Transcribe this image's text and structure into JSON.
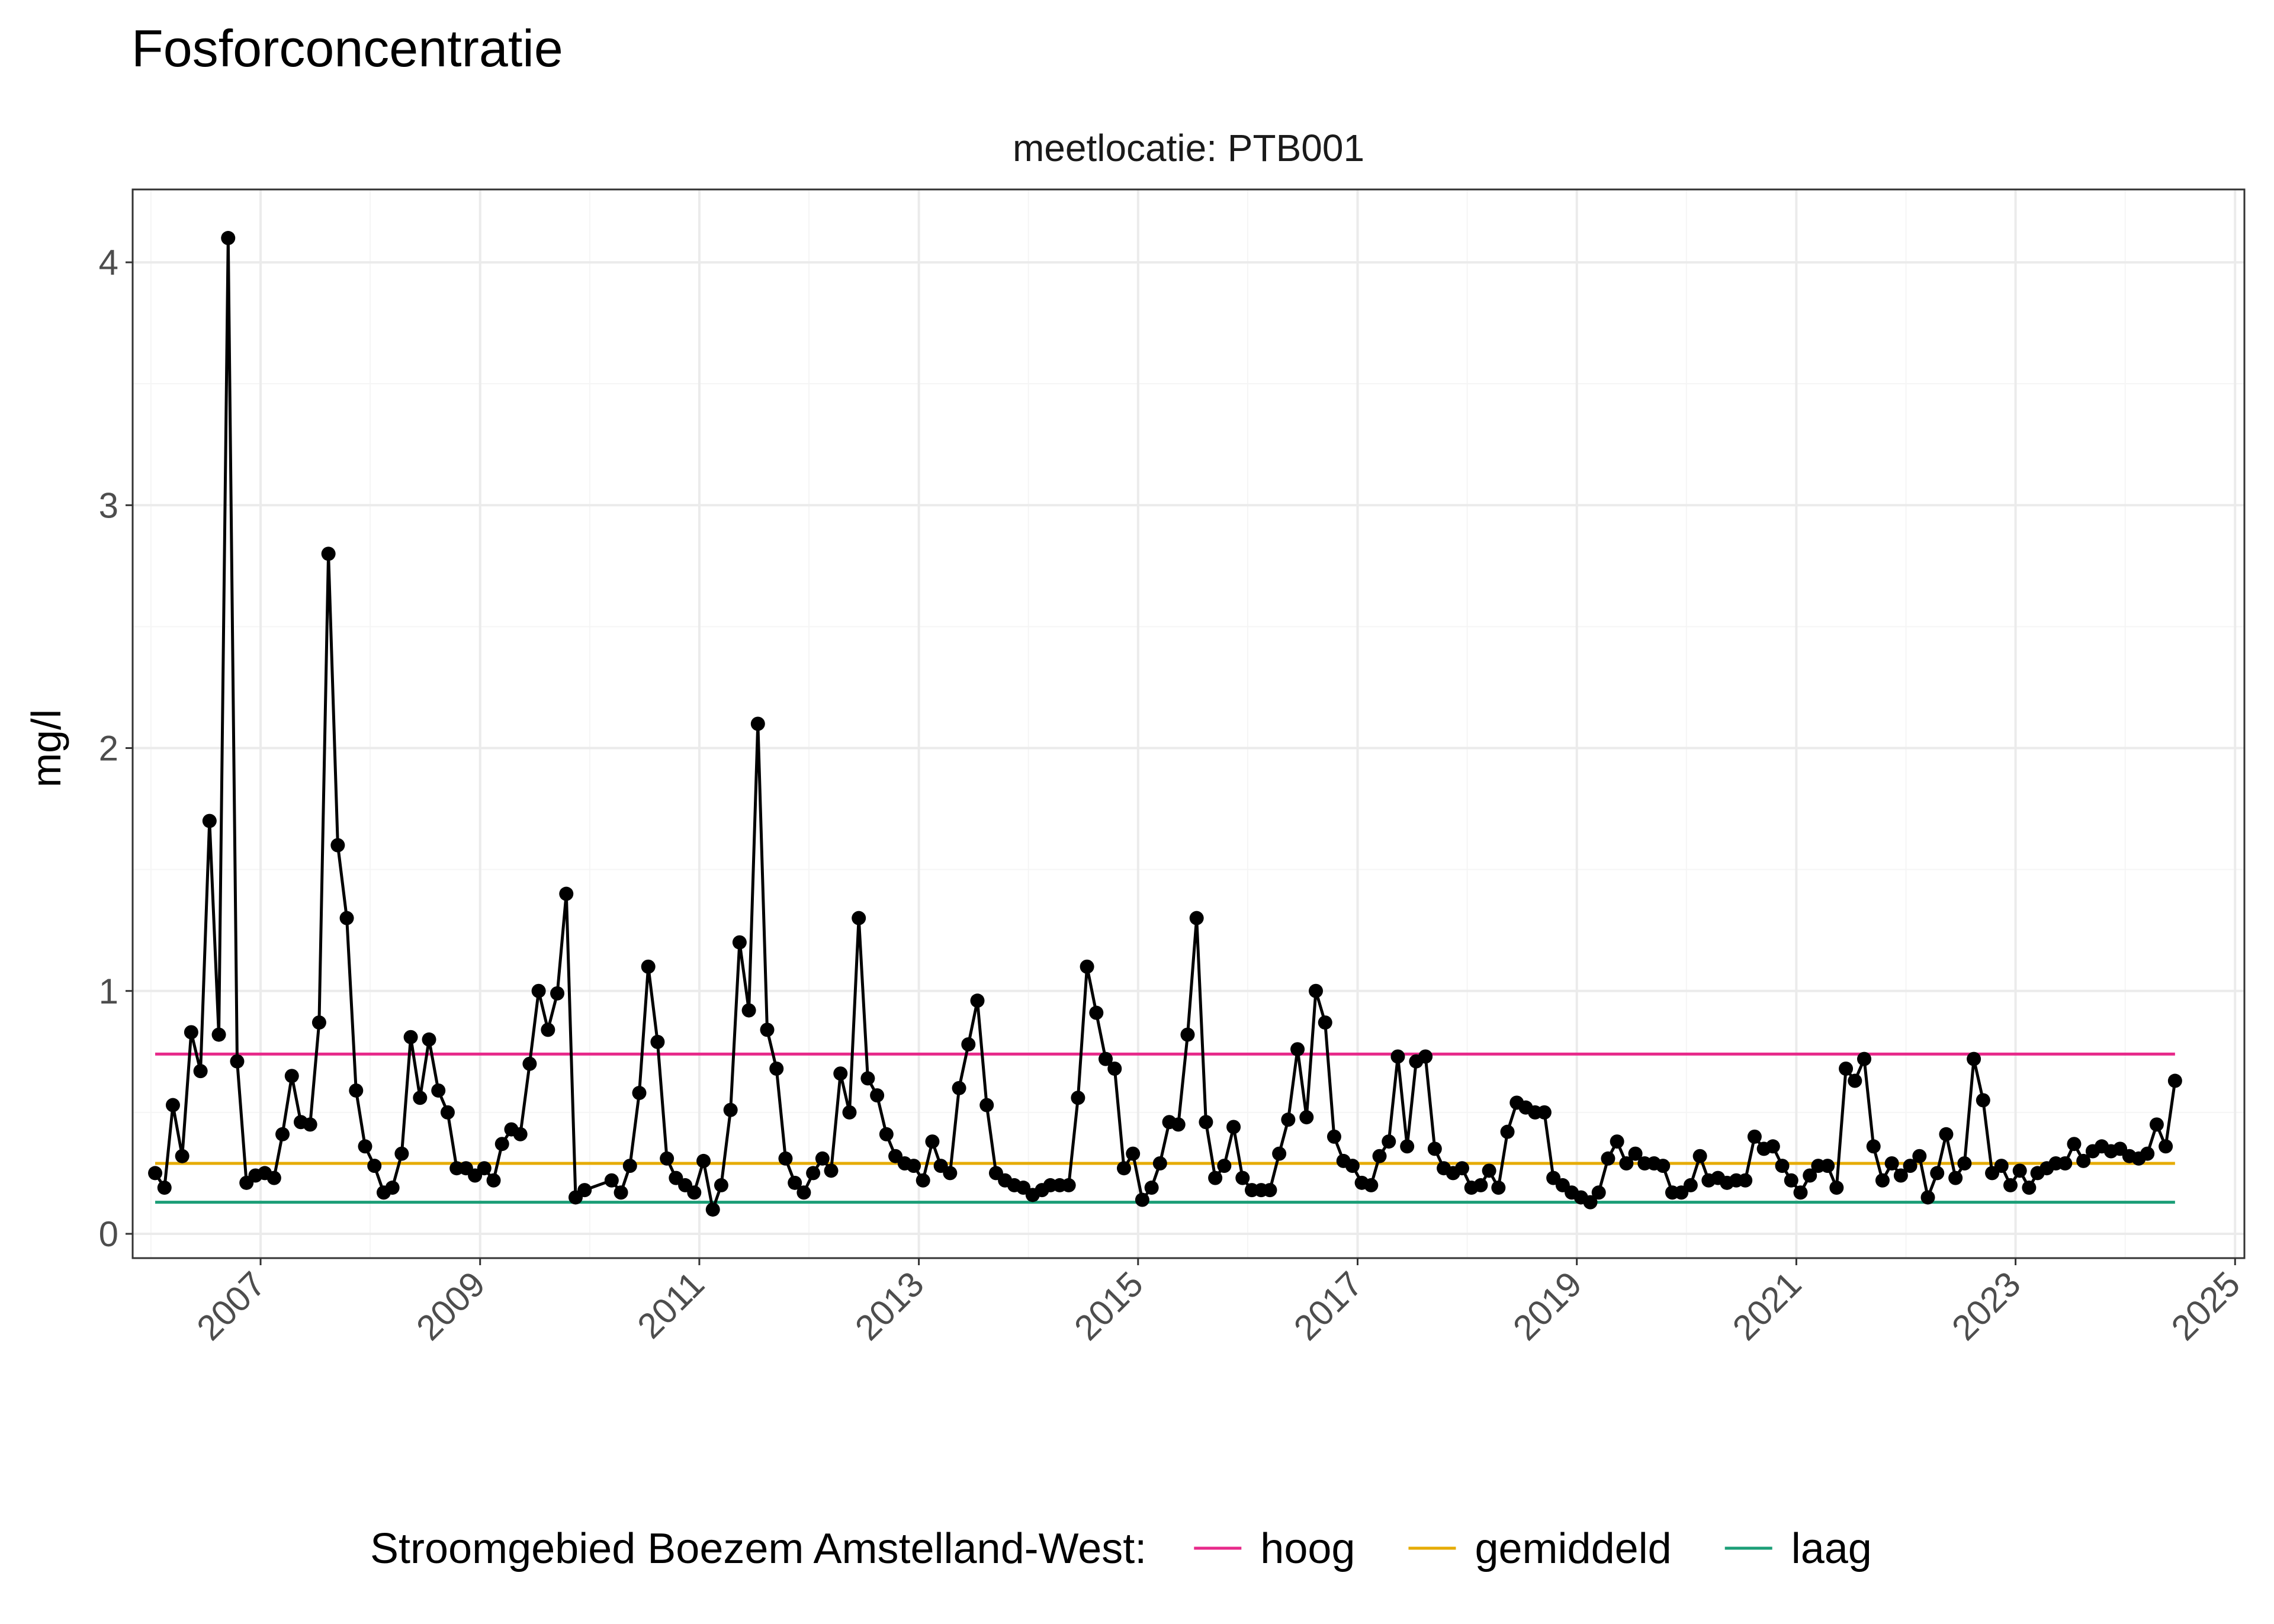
{
  "colors": {
    "hoog": "#e7298a",
    "gemiddeld": "#e6ab02",
    "laag": "#1b9e77",
    "series": "#000000",
    "grid_major": "#ebebeb",
    "grid_minor": "#f5f5f5",
    "panel_border": "#333333"
  },
  "chart_data": {
    "type": "line",
    "title": "Fosforconcentratie",
    "facet_label": "meetlocatie: PTB001",
    "xlabel": "",
    "ylabel": "mg/l",
    "x_unit": "date",
    "xlim": [
      "2005-11-01",
      "2025-02-01"
    ],
    "ylim": [
      -0.1,
      4.3
    ],
    "x_ticks": [
      "2007",
      "2009",
      "2011",
      "2013",
      "2015",
      "2017",
      "2019",
      "2021",
      "2023",
      "2025"
    ],
    "y_ticks": [
      0,
      1,
      2,
      3,
      4
    ],
    "grid": true,
    "legend": {
      "position": "bottom",
      "title": "Stroomgebied Boezem Amstelland-West:",
      "entries": [
        "hoog",
        "gemiddeld",
        "laag"
      ]
    },
    "reference_lines": [
      {
        "name": "hoog",
        "value": 0.74,
        "x_start": "2006-01-15",
        "x_end": "2024-06-15"
      },
      {
        "name": "gemiddeld",
        "value": 0.29,
        "x_start": "2006-01-15",
        "x_end": "2024-06-15"
      },
      {
        "name": "laag",
        "value": 0.13,
        "x_start": "2006-01-15",
        "x_end": "2024-06-15"
      }
    ],
    "series": [
      {
        "x": [
          "2006-01-15",
          "2006-02-15",
          "2006-03-15",
          "2006-04-15",
          "2006-05-15",
          "2006-06-15",
          "2006-07-15",
          "2006-08-15",
          "2006-09-15",
          "2006-10-15",
          "2006-11-15",
          "2006-12-15",
          "2007-01-15",
          "2007-02-15",
          "2007-03-15",
          "2007-04-15",
          "2007-05-15",
          "2007-06-15",
          "2007-07-15",
          "2007-08-15",
          "2007-09-15",
          "2007-10-15",
          "2007-11-15",
          "2007-12-15",
          "2008-01-15",
          "2008-02-15",
          "2008-03-15",
          "2008-04-15",
          "2008-05-15",
          "2008-06-15",
          "2008-07-15",
          "2008-08-15",
          "2008-09-15",
          "2008-10-15",
          "2008-11-15",
          "2008-12-15",
          "2009-01-15",
          "2009-02-15",
          "2009-03-15",
          "2009-04-15",
          "2009-05-15",
          "2009-06-15",
          "2009-07-15",
          "2009-08-15",
          "2009-09-15",
          "2009-10-15",
          "2009-11-15",
          "2009-12-15",
          "2010-03-15",
          "2010-04-15",
          "2010-05-15",
          "2010-06-15",
          "2010-07-15",
          "2010-08-15",
          "2010-09-15",
          "2010-10-15",
          "2010-11-15",
          "2010-12-15",
          "2011-01-15",
          "2011-02-15",
          "2011-03-15",
          "2011-04-15",
          "2011-05-15",
          "2011-06-15",
          "2011-07-15",
          "2011-08-15",
          "2011-09-15",
          "2011-10-15",
          "2011-11-15",
          "2011-12-15",
          "2012-01-15",
          "2012-02-15",
          "2012-03-15",
          "2012-04-15",
          "2012-05-15",
          "2012-06-15",
          "2012-07-15",
          "2012-08-15",
          "2012-09-15",
          "2012-10-15",
          "2012-11-15",
          "2012-12-15",
          "2013-01-15",
          "2013-02-15",
          "2013-03-15",
          "2013-04-15",
          "2013-05-15",
          "2013-06-15",
          "2013-07-15",
          "2013-08-15",
          "2013-09-15",
          "2013-10-15",
          "2013-11-15",
          "2013-12-15",
          "2014-01-15",
          "2014-02-15",
          "2014-03-15",
          "2014-04-15",
          "2014-05-15",
          "2014-06-15",
          "2014-07-15",
          "2014-08-15",
          "2014-09-15",
          "2014-10-15",
          "2014-11-15",
          "2014-12-15",
          "2015-01-15",
          "2015-02-15",
          "2015-03-15",
          "2015-04-15",
          "2015-05-15",
          "2015-06-15",
          "2015-07-15",
          "2015-08-15",
          "2015-09-15",
          "2015-10-15",
          "2015-11-15",
          "2015-12-15",
          "2016-01-15",
          "2016-02-15",
          "2016-03-15",
          "2016-04-15",
          "2016-05-15",
          "2016-06-15",
          "2016-07-15",
          "2016-08-15",
          "2016-09-15",
          "2016-10-15",
          "2016-11-15",
          "2016-12-15",
          "2017-01-15",
          "2017-02-15",
          "2017-03-15",
          "2017-04-15",
          "2017-05-15",
          "2017-06-15",
          "2017-07-15",
          "2017-08-15",
          "2017-09-15",
          "2017-10-15",
          "2017-11-15",
          "2017-12-15",
          "2018-01-15",
          "2018-02-15",
          "2018-03-15",
          "2018-04-15",
          "2018-05-15",
          "2018-06-15",
          "2018-07-15",
          "2018-08-15",
          "2018-09-15",
          "2018-10-15",
          "2018-11-15",
          "2018-12-15",
          "2019-01-15",
          "2019-02-15",
          "2019-03-15",
          "2019-04-15",
          "2019-05-15",
          "2019-06-15",
          "2019-07-15",
          "2019-08-15",
          "2019-09-15",
          "2019-10-15",
          "2019-11-15",
          "2019-12-15",
          "2020-01-15",
          "2020-02-15",
          "2020-03-15",
          "2020-04-15",
          "2020-05-15",
          "2020-06-15",
          "2020-07-15",
          "2020-08-15",
          "2020-09-15",
          "2020-10-15",
          "2020-11-15",
          "2020-12-15",
          "2021-01-15",
          "2021-02-15",
          "2021-03-15",
          "2021-04-15",
          "2021-05-15",
          "2021-06-15",
          "2021-07-15",
          "2021-08-15",
          "2021-09-15",
          "2021-10-15",
          "2021-11-15",
          "2021-12-15",
          "2022-01-15",
          "2022-02-15",
          "2022-03-15",
          "2022-04-15",
          "2022-05-15",
          "2022-06-15",
          "2022-07-15",
          "2022-08-15",
          "2022-09-15",
          "2022-10-15",
          "2022-11-15",
          "2022-12-15",
          "2023-01-15",
          "2023-02-15",
          "2023-03-15",
          "2023-04-15",
          "2023-05-15",
          "2023-06-15",
          "2023-07-15",
          "2023-08-15",
          "2023-09-15",
          "2023-10-15",
          "2023-11-15",
          "2023-12-15",
          "2024-01-15",
          "2024-02-15",
          "2024-03-15",
          "2024-04-15",
          "2024-05-15",
          "2024-06-15"
        ],
        "values": [
          0.25,
          0.19,
          0.53,
          0.32,
          0.83,
          0.67,
          1.7,
          0.82,
          4.1,
          0.71,
          0.21,
          0.24,
          0.25,
          0.23,
          0.41,
          0.65,
          0.46,
          0.45,
          0.87,
          2.8,
          1.6,
          1.3,
          0.59,
          0.36,
          0.28,
          0.17,
          0.19,
          0.33,
          0.81,
          0.56,
          0.8,
          0.59,
          0.5,
          0.27,
          0.27,
          0.24,
          0.27,
          0.22,
          0.37,
          0.43,
          0.41,
          0.7,
          1.0,
          0.84,
          0.99,
          1.4,
          0.15,
          0.18,
          0.22,
          0.17,
          0.28,
          0.58,
          1.1,
          0.79,
          0.31,
          0.23,
          0.2,
          0.17,
          0.3,
          0.1,
          0.2,
          0.51,
          1.2,
          0.92,
          2.1,
          0.84,
          0.68,
          0.31,
          0.21,
          0.17,
          0.25,
          0.31,
          0.26,
          0.66,
          0.5,
          1.3,
          0.64,
          0.57,
          0.41,
          0.32,
          0.29,
          0.28,
          0.22,
          0.38,
          0.28,
          0.25,
          0.6,
          0.78,
          0.96,
          0.53,
          0.25,
          0.22,
          0.2,
          0.19,
          0.16,
          0.18,
          0.2,
          0.2,
          0.2,
          0.56,
          1.1,
          0.91,
          0.72,
          0.68,
          0.27,
          0.33,
          0.14,
          0.19,
          0.29,
          0.46,
          0.45,
          0.82,
          1.3,
          0.46,
          0.23,
          0.28,
          0.44,
          0.23,
          0.18,
          0.18,
          0.18,
          0.33,
          0.47,
          0.76,
          0.48,
          1.0,
          0.87,
          0.4,
          0.3,
          0.28,
          0.21,
          0.2,
          0.32,
          0.38,
          0.73,
          0.36,
          0.71,
          0.73,
          0.35,
          0.27,
          0.25,
          0.27,
          0.19,
          0.2,
          0.26,
          0.19,
          0.42,
          0.54,
          0.52,
          0.5,
          0.5,
          0.23,
          0.2,
          0.17,
          0.15,
          0.13,
          0.17,
          0.31,
          0.38,
          0.29,
          0.33,
          0.29,
          0.29,
          0.28,
          0.17,
          0.17,
          0.2,
          0.32,
          0.22,
          0.23,
          0.21,
          0.22,
          0.22,
          0.4,
          0.35,
          0.36,
          0.28,
          0.22,
          0.17,
          0.24,
          0.28,
          0.28,
          0.19,
          0.68,
          0.63,
          0.72,
          0.36,
          0.22,
          0.29,
          0.24,
          0.28,
          0.32,
          0.15,
          0.25,
          0.41,
          0.23,
          0.29,
          0.72,
          0.55,
          0.25,
          0.28,
          0.2,
          0.26,
          0.19,
          0.25,
          0.27,
          0.29,
          0.29,
          0.37,
          0.3,
          0.34,
          0.36,
          0.34,
          0.35,
          0.32,
          0.31,
          0.33,
          0.45,
          0.36,
          0.63
        ]
      }
    ]
  }
}
